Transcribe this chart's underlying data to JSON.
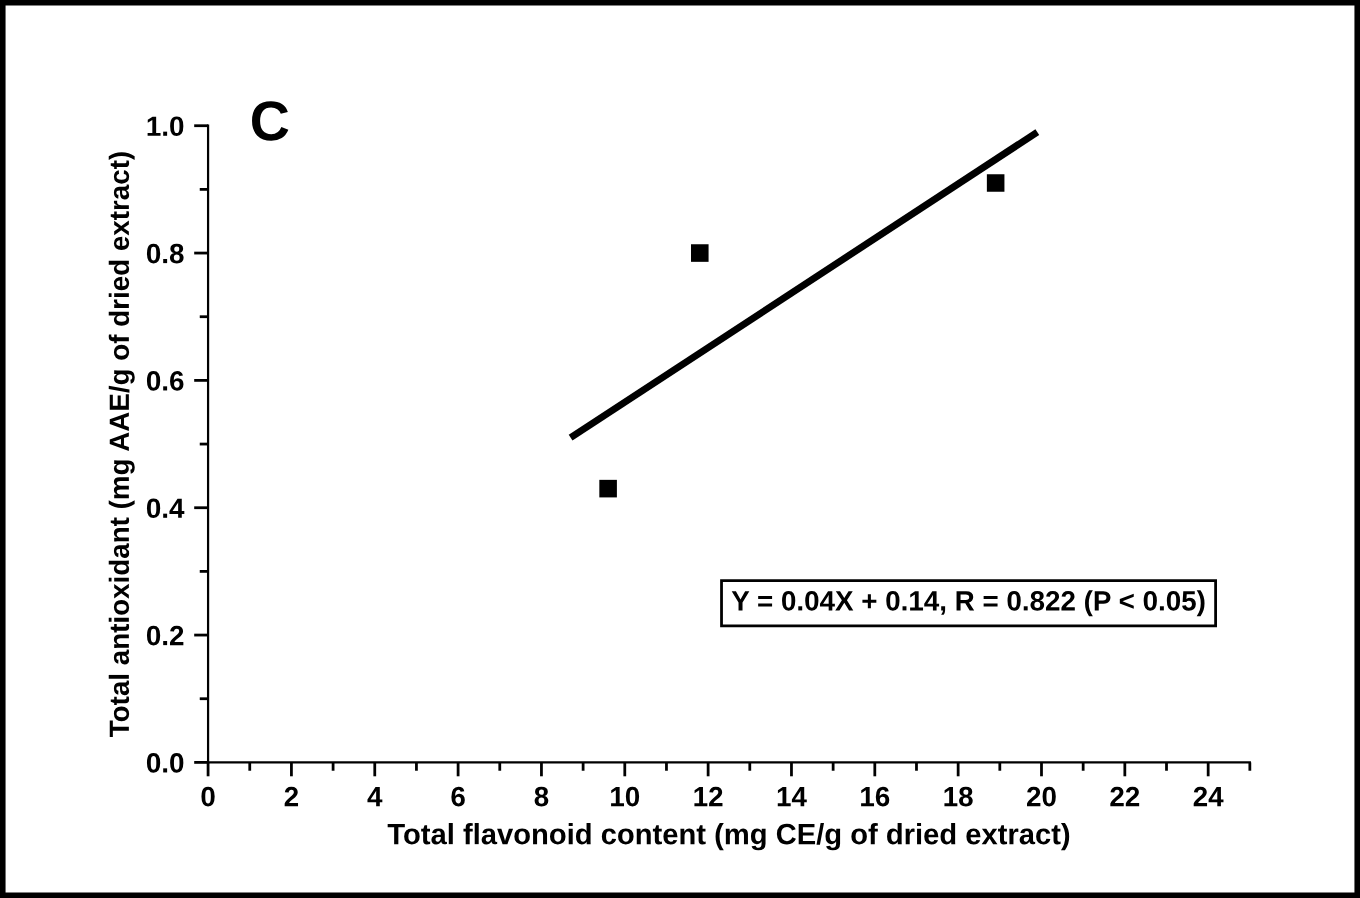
{
  "chart_data": {
    "type": "scatter",
    "xlabel": "Total flavonoid content (mg CE/g of dried extract)",
    "ylabel": "Total antioxidant (mg AAE/g of dried extract)",
    "annotations": [
      "C",
      "Y = 0.04X + 0.14, R = 0.822 (P < 0.05)"
    ],
    "x": [
      9.6,
      11.8,
      18.9
    ],
    "series": [
      {
        "color": "#000000",
        "values": [
          0.43,
          0.8,
          0.91
        ],
        "marker": "square"
      },
      {
        "type": "line",
        "color": "#000000",
        "x": [
          8.7,
          19.9
        ],
        "values": [
          0.51,
          0.99
        ],
        "line_style": "solid"
      }
    ],
    "xlim": [
      0,
      25
    ],
    "ylim": [
      0,
      1.0
    ],
    "xticks": [
      0,
      2,
      4,
      6,
      8,
      10,
      12,
      14,
      16,
      18,
      20,
      22,
      24
    ],
    "yticks": [
      {
        "value": 0,
        "label": "0.0"
      },
      {
        "value": 0.2,
        "label": "0.2"
      },
      {
        "value": 0.4,
        "label": "0.4"
      },
      {
        "value": 0.6,
        "label": "0.6"
      },
      {
        "value": 0.8,
        "label": "0.8"
      },
      {
        "value": 1.0,
        "label": "1.0"
      }
    ],
    "grid": false,
    "legend": false
  }
}
